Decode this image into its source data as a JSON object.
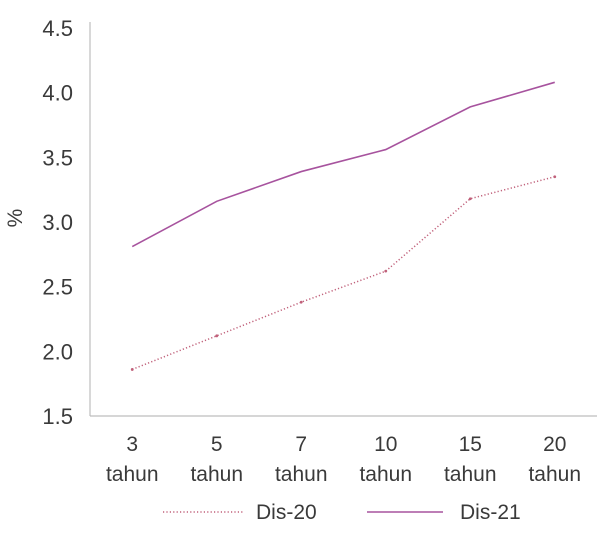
{
  "chart_data": {
    "type": "line",
    "categories": [
      [
        "3",
        "tahun"
      ],
      [
        "5",
        "tahun"
      ],
      [
        "7",
        "tahun"
      ],
      [
        "10",
        "tahun"
      ],
      [
        "15",
        "tahun"
      ],
      [
        "20",
        "tahun"
      ]
    ],
    "series": [
      {
        "name": "Dis-20",
        "values": [
          1.86,
          2.12,
          2.38,
          2.62,
          3.18,
          3.35
        ],
        "color": "#c0607a",
        "style": "dotted"
      },
      {
        "name": "Dis-21",
        "values": [
          2.81,
          3.16,
          3.39,
          3.56,
          3.89,
          4.08
        ],
        "color": "#a7539e",
        "style": "solid"
      }
    ],
    "ylabel": "%",
    "ylim": [
      1.5,
      4.5
    ],
    "yticks": [
      "1.5",
      "2.0",
      "2.5",
      "3.0",
      "3.5",
      "4.0",
      "4.5"
    ],
    "grid": false,
    "legend_position": "bottom"
  }
}
